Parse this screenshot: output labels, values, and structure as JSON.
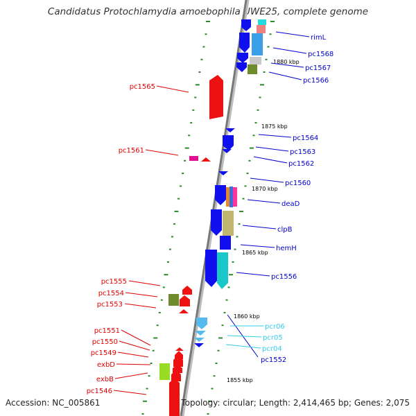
{
  "title": "Candidatus Protochlamydia amoebophila UWE25, complete genome",
  "accession_text": "Accession: NC_005861",
  "topology_text": "Topology: circular; Length: 2,414,465 bp; Genes: 2,075",
  "colors": {
    "forward_label": "#0000cc",
    "reverse_label": "#dd0000",
    "rna_label": "#33ccee",
    "tick": "#2a8a2a",
    "backbone": "#8c8c8c"
  },
  "kbp_labels": [
    "1880 kbp",
    "1875 kbp",
    "1870 kbp",
    "1865 kbp",
    "1860 kbp",
    "1855 kbp"
  ],
  "right_labels": [
    "rimL",
    "pc1568",
    "pc1567",
    "pc1566",
    "pc1564",
    "pc1563",
    "pc1562",
    "pc1560",
    "deaD",
    "clpB",
    "hemH",
    "pc1556",
    "pcr06",
    "pcr05",
    "pcr04",
    "pc1552"
  ],
  "left_labels": [
    "pc1565",
    "pc1561",
    "pc1555",
    "pc1554",
    "pc1553",
    "pc1551",
    "pc1550",
    "pc1549",
    "exbD",
    "exbB",
    "pc1546"
  ]
}
